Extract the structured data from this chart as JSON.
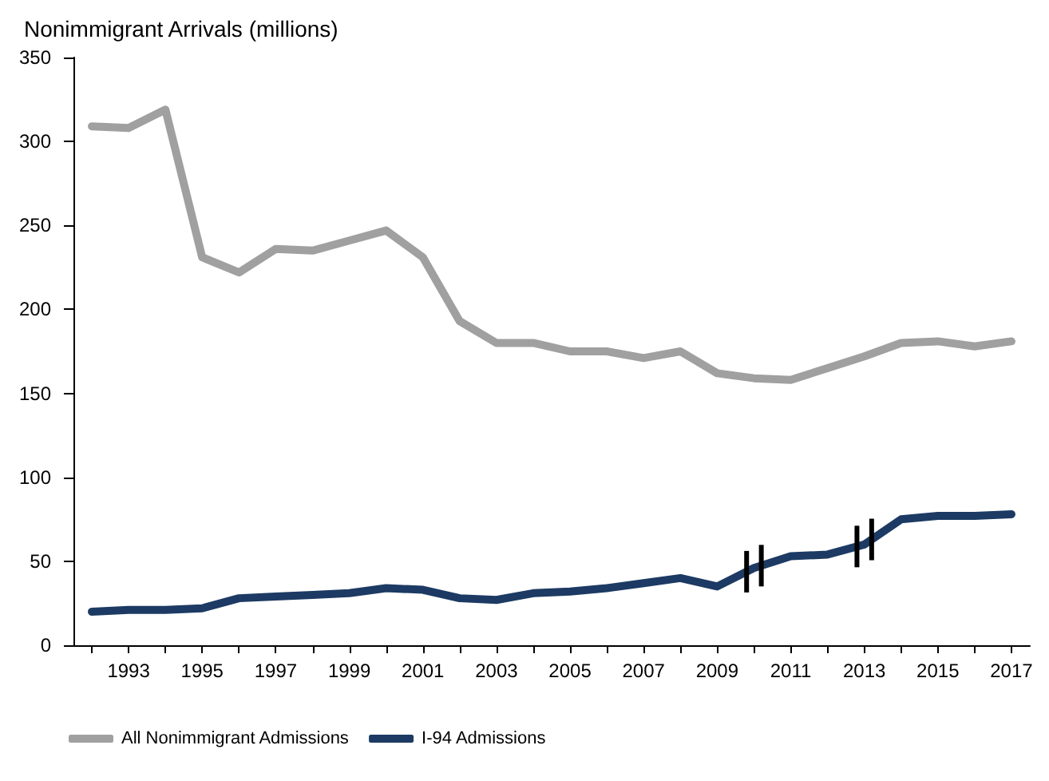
{
  "chart_data": {
    "type": "line",
    "ylabel": "Nonimmigrant Arrivals (millions)",
    "categories": [
      null,
      "1993",
      null,
      "1995",
      null,
      "1997",
      null,
      "1999",
      null,
      "2001",
      null,
      "2003",
      null,
      "2005",
      null,
      "2007",
      null,
      "2009",
      null,
      "2011",
      null,
      "2013",
      null,
      "2015",
      null,
      "2017"
    ],
    "series": [
      {
        "name": "All Nonimmigrant Admissions",
        "color": "#a0a0a0",
        "values": [
          309,
          308,
          319,
          231,
          222,
          236,
          235,
          241,
          247,
          231,
          193,
          180,
          180,
          175,
          175,
          171,
          175,
          162,
          159,
          158,
          165,
          172,
          180,
          181,
          178,
          181
        ]
      },
      {
        "name": "I-94 Admissions",
        "color": "#1c3a63",
        "values": [
          20,
          21,
          21,
          22,
          28,
          29,
          30,
          31,
          34,
          33,
          28,
          27,
          31,
          32,
          34,
          37,
          40,
          35,
          46,
          53,
          54,
          60,
          75,
          77,
          77,
          78
        ]
      }
    ],
    "ylim": [
      0,
      350
    ],
    "yticks": [
      0,
      50,
      100,
      150,
      200,
      250,
      300,
      350
    ],
    "grid": false,
    "legend": "bottom left",
    "marker": "none",
    "line_style": "solid"
  }
}
